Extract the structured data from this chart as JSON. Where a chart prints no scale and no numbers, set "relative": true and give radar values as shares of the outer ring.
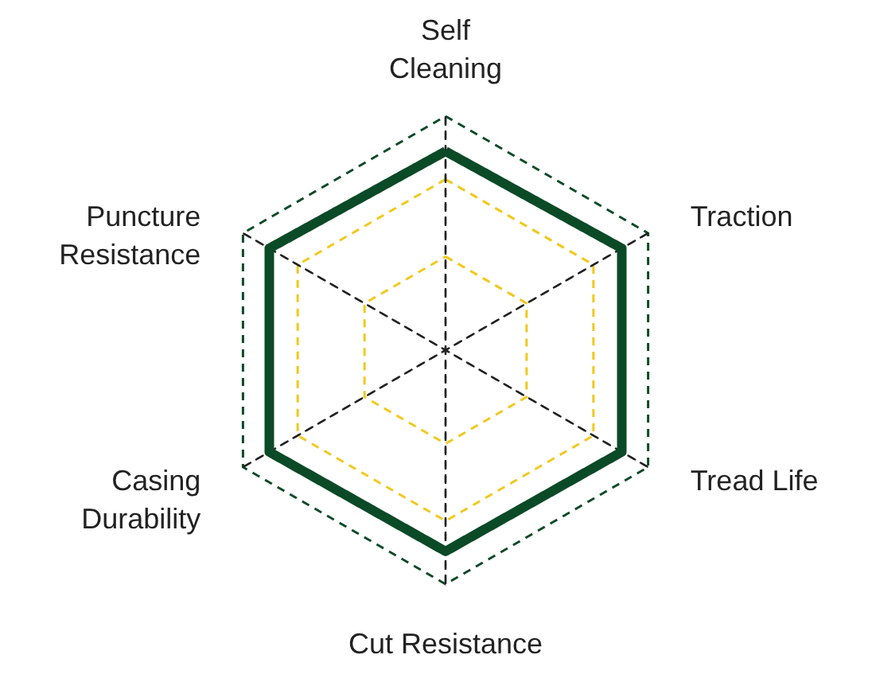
{
  "chart_data": {
    "type": "radar",
    "relative": true,
    "grid": true,
    "marker": "none",
    "line_style": "solid",
    "categories": [
      "Self\nCleaning",
      "Traction",
      "Tread Life",
      "Cut Resistance",
      "Casing\nDurability",
      "Puncture\nResistance"
    ],
    "series": [
      {
        "color": "#0b4a26",
        "values": [
          0.85,
          0.87,
          0.87,
          0.86,
          0.87,
          0.87
        ]
      }
    ]
  }
}
